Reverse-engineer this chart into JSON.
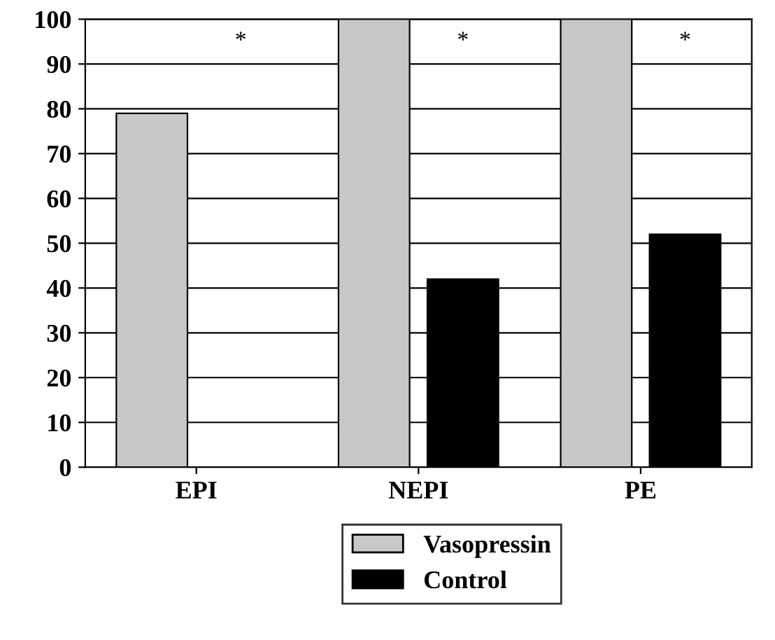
{
  "chart_data": {
    "type": "bar",
    "categories": [
      "EPI",
      "NEPI",
      "PE"
    ],
    "series": [
      {
        "name": "Vasopressin",
        "color": "#c8c8c8",
        "values": [
          79,
          100,
          100
        ]
      },
      {
        "name": "Control",
        "color": "#000000",
        "values": [
          0,
          42,
          52
        ]
      }
    ],
    "ylim": [
      0,
      100
    ],
    "yticks": [
      0,
      10,
      20,
      30,
      40,
      50,
      60,
      70,
      80,
      90,
      100
    ],
    "grid": "y",
    "legend": "bottom",
    "annotations": [
      "*",
      "*",
      "*"
    ]
  }
}
